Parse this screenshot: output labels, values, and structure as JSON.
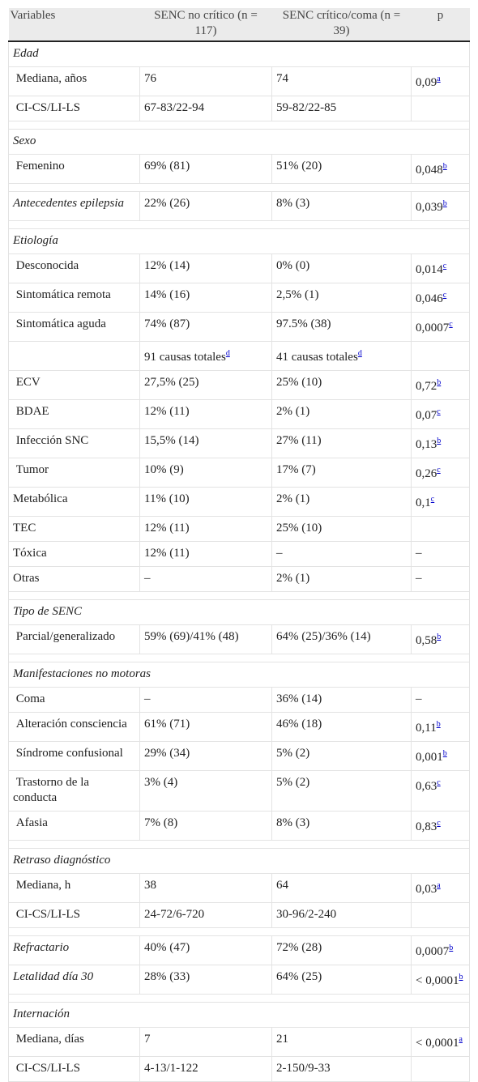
{
  "table": {
    "header": [
      "Variables",
      "SENC no crítico (n = 117)",
      "SENC crítico/coma (n = 39)",
      "p"
    ],
    "sections": [
      {
        "title": "Edad",
        "rows": [
          [
            " Mediana, años",
            "76",
            "74",
            {
              "text": "0,09",
              "note": "a"
            }
          ],
          [
            " CI-CS/LI-LS",
            "67-83/22-94",
            "59-82/22-85",
            null
          ]
        ]
      },
      {
        "title": "Sexo",
        "rows": [
          [
            " Femenino",
            "69% (81)",
            "51% (20)",
            {
              "text": "0,048",
              "note": "b"
            }
          ]
        ]
      },
      {
        "rows": [
          [
            "Antecedentes epilepsia",
            "22% (26)",
            "8% (3)",
            {
              "text": "0,039",
              "note": "b"
            }
          ]
        ]
      },
      {
        "title": "Etiología",
        "rows": [
          [
            " Desconocida",
            "12% (14)",
            "0% (0)",
            {
              "text": "0,014",
              "note": "c"
            }
          ],
          [
            " Sintomática remota",
            "14% (16)",
            "2,5% (1)",
            {
              "text": "0,046",
              "note": "c"
            }
          ],
          [
            " Sintomática aguda",
            "74% (87)",
            "97.5% (38)",
            {
              "text": "0,0007",
              "note": "c"
            }
          ],
          [
            null,
            {
              "text": "91 causas totales",
              "note": "d"
            },
            {
              "text": "41 causas totales",
              "note": "d"
            },
            null
          ],
          [
            " ECV",
            "27,5% (25)",
            "25% (10)",
            {
              "text": "0,72",
              "note": "b"
            }
          ],
          [
            " BDAE",
            "12% (11)",
            "2% (1)",
            {
              "text": "0,07",
              "note": "c"
            }
          ],
          [
            " Infección SNC",
            "15,5% (14)",
            "27% (11)",
            {
              "text": "0,13",
              "note": "b"
            }
          ],
          [
            " Tumor",
            "10% (9)",
            "17% (7)",
            {
              "text": "0,26",
              "note": "c"
            }
          ],
          [
            "Metabólica",
            "11% (10)",
            "2% (1)",
            {
              "text": "0,1",
              "note": "c"
            }
          ],
          [
            "TEC",
            "12% (11)",
            "25% (10)",
            null
          ],
          [
            "Tóxica",
            "12% (11)",
            "–",
            "–"
          ],
          [
            "Otras",
            "–",
            "2% (1)",
            "–"
          ]
        ]
      },
      {
        "title": "Tipo de SENC",
        "rows": [
          [
            " Parcial/generalizado",
            "59% (69)/41% (48)",
            "64% (25)/36% (14)",
            {
              "text": "0,58",
              "note": "b"
            }
          ]
        ]
      },
      {
        "title": "Manifestaciones no motoras",
        "rows": [
          [
            " Coma",
            "–",
            "36% (14)",
            "–"
          ],
          [
            " Alteración consciencia",
            "61% (71)",
            "46% (18)",
            {
              "text": "0,11",
              "note": "b"
            }
          ],
          [
            " Síndrome confusional",
            "29% (34)",
            "5% (2)",
            {
              "text": "0,001",
              "note": "b"
            }
          ],
          [
            " Trastorno de la conducta",
            "3% (4)",
            "5% (2)",
            {
              "text": "0,63",
              "note": "c"
            }
          ],
          [
            " Afasia",
            "7% (8)",
            "8% (3)",
            {
              "text": "0,83",
              "note": "c"
            }
          ]
        ]
      },
      {
        "title": "Retraso diagnóstico",
        "rows": [
          [
            " Mediana, h",
            "38",
            "64",
            {
              "text": "0,03",
              "note": "a"
            }
          ],
          [
            " CI-CS/LI-LS",
            "24-72/6-720",
            "30-96/2-240",
            null
          ]
        ]
      },
      {
        "rows": [
          [
            "Refractario",
            "40% (47)",
            "72% (28)",
            {
              "text": "0,0007",
              "note": "b"
            }
          ],
          [
            "Letalidad día 30",
            "28% (33)",
            "64% (25)",
            {
              "text": "< 0,0001",
              "note": "b"
            }
          ]
        ]
      },
      {
        "title": "Internación",
        "rows": [
          [
            " Mediana, días",
            "7",
            "21",
            {
              "text": "< 0,0001",
              "note": "a"
            }
          ],
          [
            " CI-CS/LI-LS",
            "4-13/1-122",
            "2-150/9-33",
            null
          ]
        ]
      }
    ]
  }
}
